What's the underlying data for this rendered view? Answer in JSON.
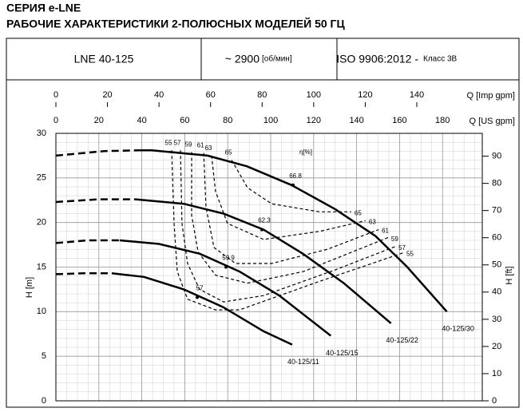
{
  "header": {
    "series_title": "СЕРИЯ e-LNE",
    "title": "РАБОЧИЕ ХАРАКТЕРИСТИКИ 2-ПОЛЮСНЫХ МОДЕЛЕЙ 50 ГЦ",
    "model": "LNE 40-125",
    "speed": "~ 2900",
    "speed_unit": "[об/мин]",
    "standard": "ISO 9906:2012 -",
    "class": "Класс 3В"
  },
  "chart_data": {
    "type": "line",
    "xlabel": "Q [US gpm]",
    "x2label": "Q [Imp gpm]",
    "ylabel": "H [m]",
    "y2label": "H [ft]",
    "xlim": [
      0,
      198.5
    ],
    "xticks": [
      0,
      20,
      40,
      60,
      80,
      100,
      120,
      140,
      160,
      180
    ],
    "x2lim": [
      0,
      165.4
    ],
    "x2ticks": [
      0,
      20,
      40,
      60,
      80,
      100,
      120,
      140
    ],
    "ylim": [
      0,
      30
    ],
    "yticks": [
      0,
      5,
      10,
      15,
      20,
      25,
      30
    ],
    "y2lim": [
      0,
      98.4
    ],
    "y2ticks": [
      0,
      10,
      20,
      30,
      40,
      50,
      60,
      70,
      80,
      90
    ],
    "grid": true,
    "grid_step": {
      "x": 5,
      "y": 1
    },
    "series": [
      {
        "name": "40-125/30",
        "color": "#000000",
        "x": [
          39,
          44.6,
          70.6,
          89,
          109.7,
          130,
          148.7,
          163.6,
          182
        ],
        "values": [
          28.1,
          28.1,
          27.5,
          26.3,
          24.2,
          21.5,
          18.5,
          15,
          10
        ],
        "extension": {
          "x": [
            0,
            22.3,
            39
          ],
          "values": [
            27.5,
            28,
            28.1
          ]
        }
      },
      {
        "name": "40-125/22",
        "color": "#000000",
        "x": [
          37,
          59.5,
          78,
          96.7,
          115,
          134,
          156
        ],
        "values": [
          22.6,
          22.1,
          21,
          19.2,
          16.5,
          13.2,
          8.7
        ],
        "extension": {
          "x": [
            0,
            20,
            37
          ],
          "values": [
            22.3,
            22.6,
            22.6
          ]
        }
      },
      {
        "name": "40-125/15",
        "color": "#000000",
        "x": [
          29.7,
          48,
          67,
          85.5,
          104,
          128
        ],
        "values": [
          18,
          17.6,
          16.5,
          14.5,
          11.8,
          7.3
        ],
        "extension": {
          "x": [
            0,
            15,
            29.7
          ],
          "values": [
            17.7,
            18,
            18
          ]
        }
      },
      {
        "name": "40-125/11",
        "color": "#000000",
        "x": [
          26,
          41,
          59.5,
          78,
          96.7,
          110
        ],
        "values": [
          14.3,
          13.9,
          12.5,
          10.5,
          7.8,
          6.3
        ],
        "extension": {
          "x": [
            0,
            13,
            26
          ],
          "values": [
            14.2,
            14.3,
            14.3
          ]
        }
      }
    ],
    "efficiency": {
      "label": "η[%]",
      "curves": [
        {
          "eta": 55,
          "x": [
            53.9,
            55,
            56.5,
            61.3,
            74.3,
            85.5,
            122.7,
            161.7
          ],
          "values": [
            28.1,
            19.9,
            14.5,
            11.4,
            10.2,
            10.2,
            13.4,
            16.6
          ]
        },
        {
          "eta": 57,
          "x": [
            58,
            58.7,
            61.3,
            66.9,
            78.1,
            96.7,
            130.1,
            158
          ],
          "values": [
            28.1,
            19.9,
            15.4,
            12.5,
            11.1,
            11.8,
            14.7,
            17.3
          ]
        },
        {
          "eta": 59,
          "x": [
            63.2,
            63.2,
            66.2,
            74.3,
            89.2,
            115.2,
            154.6
          ],
          "values": [
            27.9,
            20.8,
            16.7,
            14.1,
            13.2,
            14.5,
            18.3
          ]
        },
        {
          "eta": 61,
          "x": [
            68.8,
            69.9,
            73.6,
            83.6,
            100.4,
            126.4,
            150.2
          ],
          "values": [
            27.8,
            21.7,
            17.2,
            15.4,
            15.4,
            17,
            19.2
          ]
        },
        {
          "eta": 63,
          "x": [
            72.5,
            74.3,
            79.9,
            96.7,
            122.7,
            144.2
          ],
          "values": [
            27.5,
            23.5,
            19.9,
            18.1,
            19,
            20.2
          ]
        },
        {
          "eta": 65,
          "x": [
            81.8,
            89.2,
            100.4,
            122.7,
            137.5
          ],
          "values": [
            27,
            23.9,
            22.1,
            21.2,
            21.2
          ]
        }
      ],
      "bep": [
        {
          "eta": 66.8,
          "x": 110.4,
          "y": 24.2
        },
        {
          "eta": 62.3,
          "x": 95.9,
          "y": 19.2
        },
        {
          "eta": 59.9,
          "x": 79.2,
          "y": 15
        },
        {
          "eta": 57,
          "x": 65.8,
          "y": 11.6
        }
      ]
    }
  }
}
